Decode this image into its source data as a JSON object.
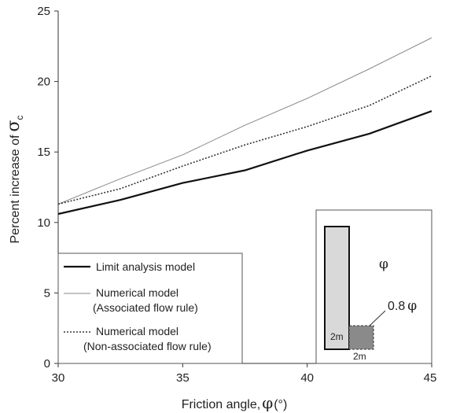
{
  "chart_data": {
    "type": "line",
    "xlabel": "Friction angle,",
    "xlabel_symbol": "φ",
    "xlabel_unit": "(°)",
    "ylabel": "Percent increase of",
    "ylabel_symbol": "σ",
    "ylabel_subscript": "c",
    "xlim": [
      30,
      45
    ],
    "ylim": [
      0,
      25
    ],
    "x_ticks": [
      "30",
      "35",
      "40",
      "45"
    ],
    "y_ticks": [
      "0",
      "5",
      "10",
      "15",
      "20",
      "25"
    ],
    "grid": false,
    "legend_position": "bottom-left",
    "series": [
      {
        "name": "Limit analysis model",
        "name_line2": "",
        "color": "#111111",
        "style": "solid-thick",
        "x": [
          30,
          32.5,
          35,
          37.5,
          40,
          42.5,
          45
        ],
        "y": [
          10.6,
          11.6,
          12.8,
          13.7,
          15.1,
          16.3,
          17.9
        ]
      },
      {
        "name": "Numerical model",
        "name_line2": "(Associated flow rule)",
        "color": "#888888",
        "style": "solid-thin",
        "x": [
          30,
          32.5,
          35,
          37.5,
          40,
          42.5,
          45
        ],
        "y": [
          11.3,
          13.1,
          14.8,
          16.9,
          18.8,
          20.9,
          23.1
        ]
      },
      {
        "name": "Numerical model",
        "name_line2": "(Non-associated flow rule)",
        "color": "#333333",
        "style": "dotted",
        "x": [
          30,
          32.5,
          35,
          37.5,
          40,
          42.5,
          45
        ],
        "y": [
          11.3,
          12.4,
          14.0,
          15.5,
          16.8,
          18.3,
          20.4
        ]
      }
    ],
    "inset": {
      "soil_symbol": "φ",
      "interface_label": "0.8",
      "interface_symbol": "φ",
      "wall_height_label": "2m",
      "zone_width_label": "2m"
    }
  }
}
